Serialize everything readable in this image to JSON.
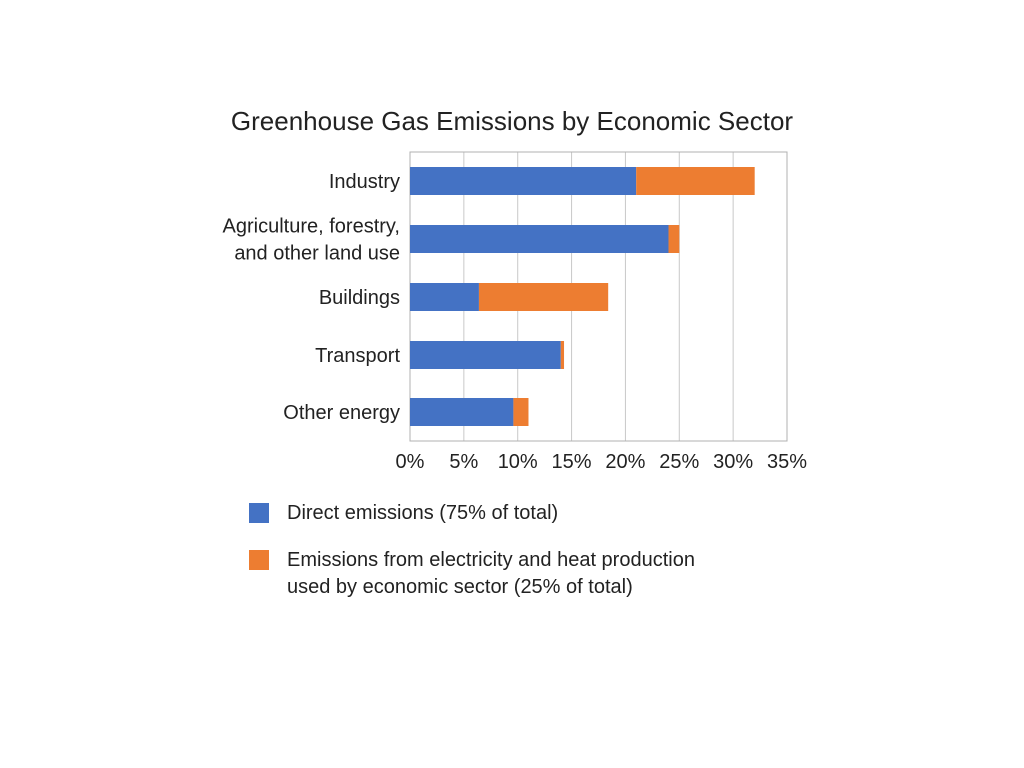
{
  "chart_data": {
    "type": "bar",
    "orientation": "horizontal",
    "stacked": true,
    "title": "Greenhouse Gas Emissions by Economic Sector",
    "categories": [
      "Industry",
      "Agriculture, forestry,\nand other land use",
      "Buildings",
      "Transport",
      "Other energy"
    ],
    "series": [
      {
        "name": "Direct emissions (75% of total)",
        "color": "#4472C4",
        "values": [
          21,
          24,
          6.4,
          14,
          9.6
        ]
      },
      {
        "name": "Emissions from electricity and heat production\nused by economic sector (25% of total)",
        "color": "#ED7D31",
        "values": [
          11,
          1,
          12,
          0.3,
          1.4
        ]
      }
    ],
    "xlim": [
      0,
      35
    ],
    "xticks": [
      "0%",
      "5%",
      "10%",
      "15%",
      "20%",
      "25%",
      "30%",
      "35%"
    ],
    "grid": true,
    "legend": "bottom"
  }
}
